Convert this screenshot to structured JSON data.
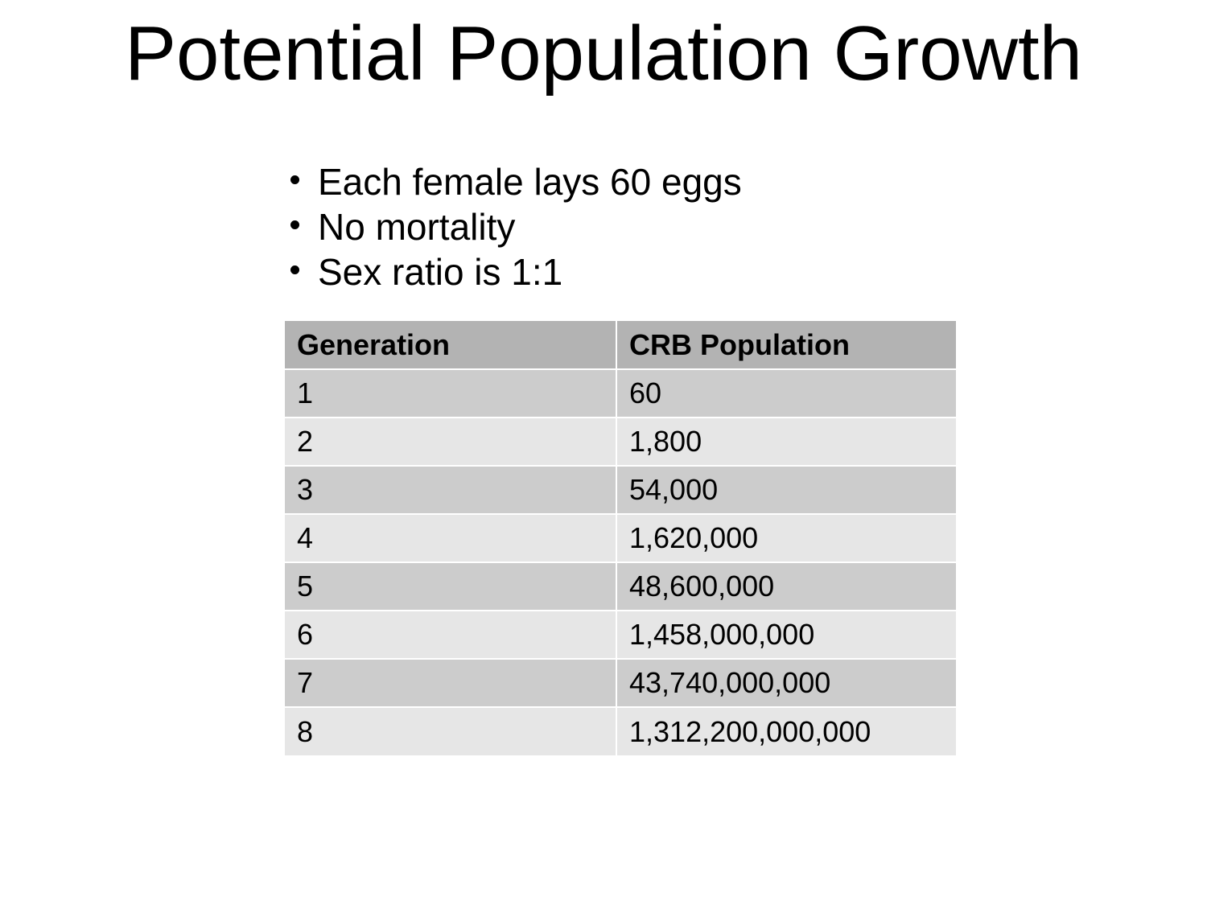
{
  "slide": {
    "title": "Potential Population Growth",
    "bullets": [
      "Each female lays 60 eggs",
      "No mortality",
      "Sex ratio is 1:1"
    ]
  },
  "table": {
    "headers": [
      "Generation",
      "CRB Population"
    ],
    "rows": [
      [
        "1",
        "60"
      ],
      [
        "2",
        "1,800"
      ],
      [
        "3",
        "54,000"
      ],
      [
        "4",
        "1,620,000"
      ],
      [
        "5",
        "48,600,000"
      ],
      [
        "6",
        "1,458,000,000"
      ],
      [
        "7",
        "43,740,000,000"
      ],
      [
        "8",
        "1,312,200,000,000"
      ]
    ]
  },
  "colors": {
    "header_bg": "#b3b3b3",
    "row_dark_bg": "#cccccc",
    "row_light_bg": "#e6e6e6",
    "text": "#000000"
  }
}
